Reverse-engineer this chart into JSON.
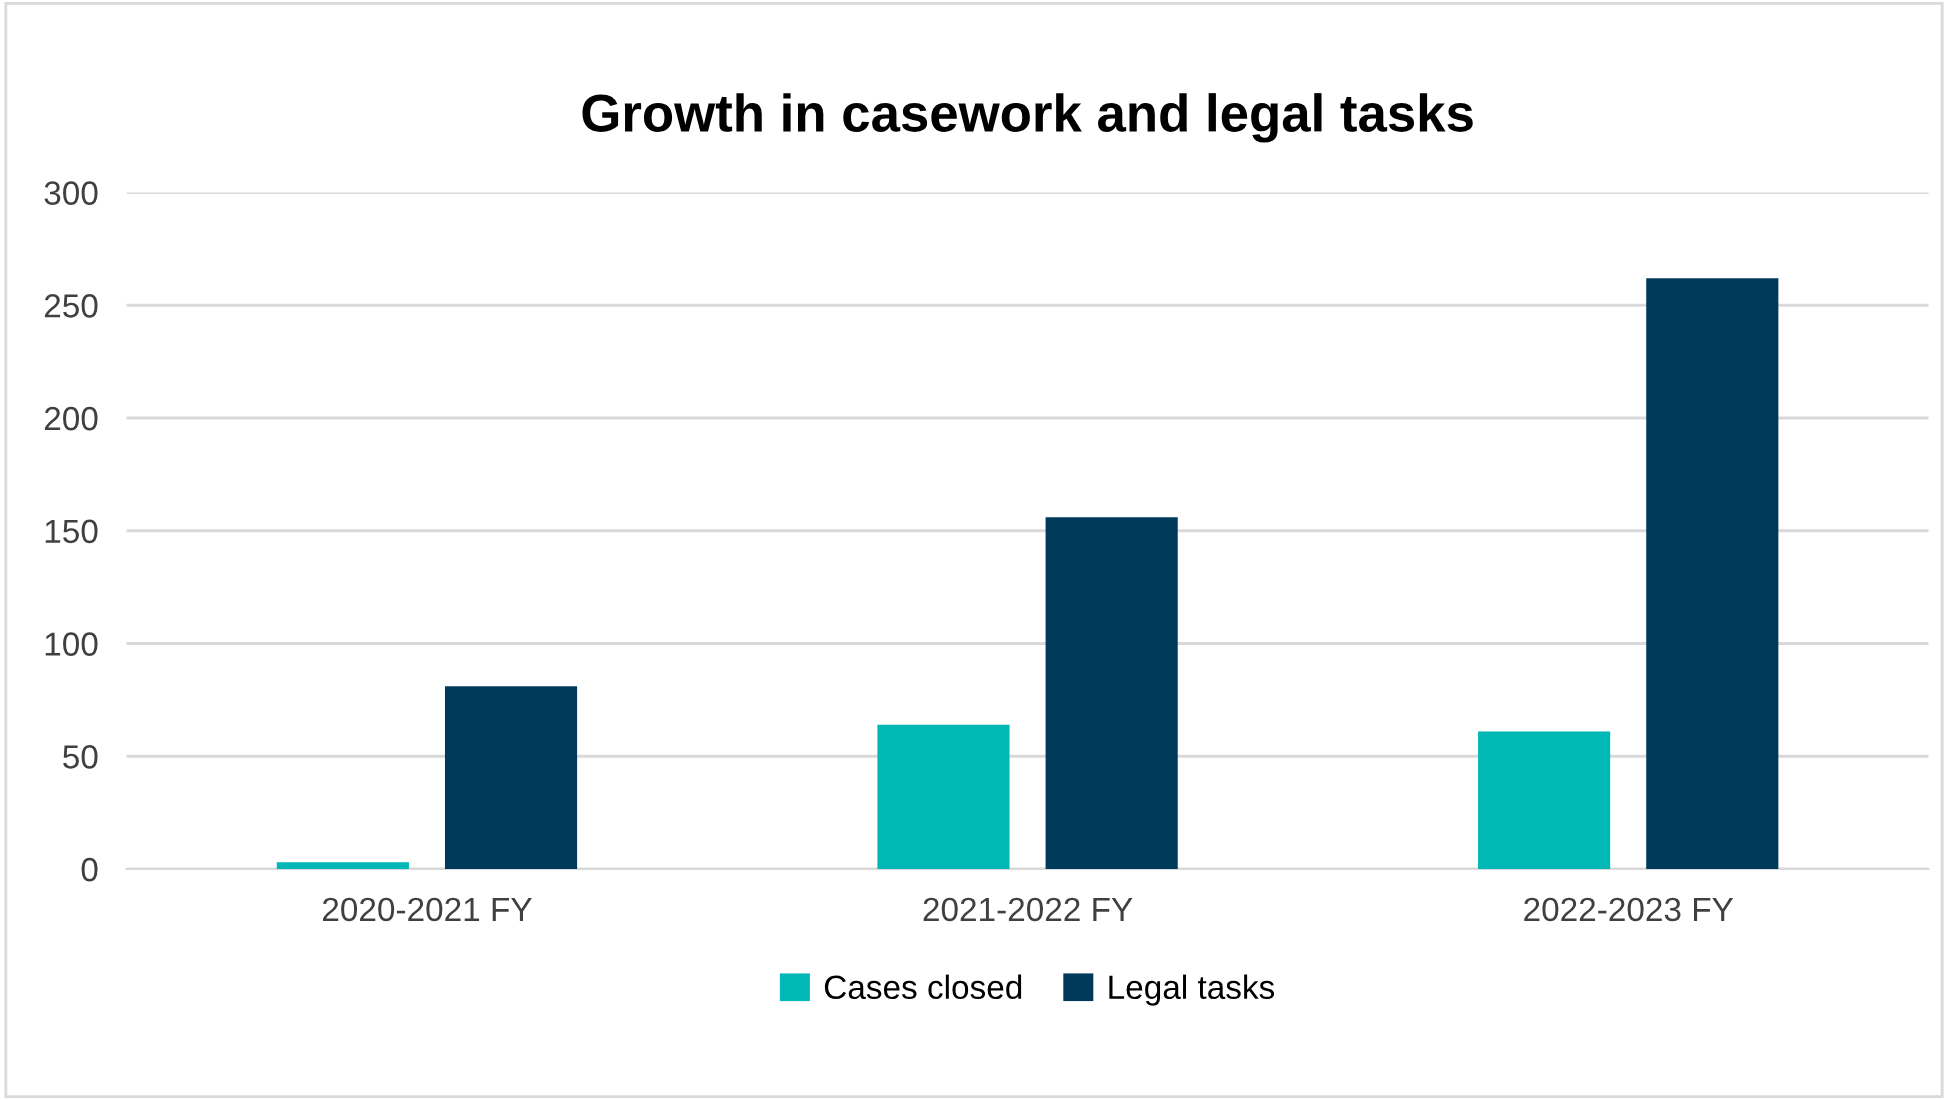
{
  "chart_data": {
    "type": "bar",
    "title": "Growth in casework and legal tasks",
    "categories": [
      "2020-2021 FY",
      "2021-2022 FY",
      "2022-2023 FY"
    ],
    "series": [
      {
        "name": "Cases closed",
        "color": "#00b8b5",
        "values": [
          3,
          64,
          61
        ]
      },
      {
        "name": "Legal tasks",
        "color": "#003a5b",
        "values": [
          81,
          156,
          262
        ]
      }
    ],
    "ylim": [
      0,
      300
    ],
    "yticks": [
      0,
      50,
      100,
      150,
      200,
      250,
      300
    ],
    "grid": "y",
    "legend": "bottom"
  }
}
